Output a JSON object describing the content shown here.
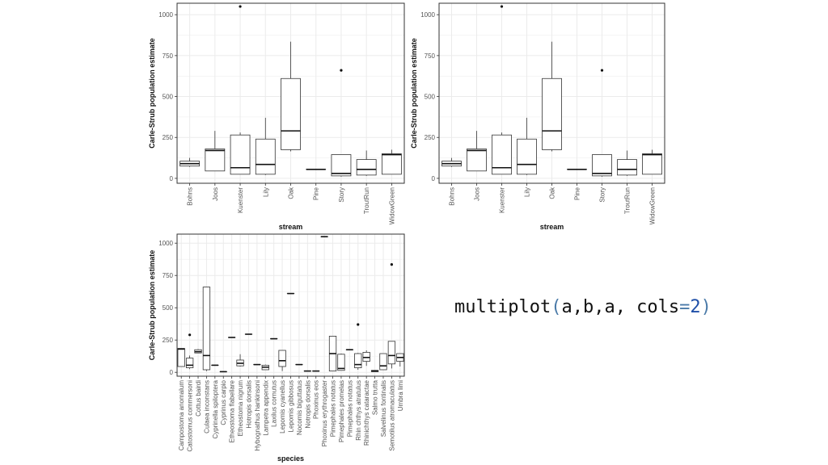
{
  "code": {
    "fn": "multiplot",
    "open": "(",
    "args": "a,b,a, cols",
    "eq": "=",
    "num": "2",
    "close": ")"
  },
  "colors": {
    "panel_border": "#333333",
    "grid": "#ebebeb",
    "box": "#333333",
    "code_paren": "#4a7aa8",
    "code_number": "#1f4fa8"
  },
  "chart_data": [
    {
      "type": "box",
      "title": "",
      "xlabel": "stream",
      "ylabel": "Carle-Strub population estimate",
      "yticks": [
        0,
        250,
        500,
        750,
        1000
      ],
      "ylim": [
        -30,
        1070
      ],
      "categories": [
        "Bohns",
        "Joos",
        "Kuenster",
        "Lily",
        "Oak",
        "Pine",
        "Story",
        "TroutRun",
        "WidowGreen"
      ],
      "boxes": [
        {
          "min": 70,
          "q1": 75,
          "median": 90,
          "q3": 105,
          "max": 125,
          "outliers": []
        },
        {
          "min": 45,
          "q1": 45,
          "median": 170,
          "q3": 180,
          "max": 290,
          "outliers": []
        },
        {
          "min": 25,
          "q1": 25,
          "median": 65,
          "q3": 265,
          "max": 280,
          "outliers": [
            1050
          ]
        },
        {
          "min": 20,
          "q1": 25,
          "median": 85,
          "q3": 240,
          "max": 370,
          "outliers": []
        },
        {
          "min": 165,
          "q1": 175,
          "median": 290,
          "q3": 610,
          "max": 835,
          "outliers": []
        },
        {
          "min": 55,
          "q1": 55,
          "median": 55,
          "q3": 55,
          "max": 55,
          "outliers": []
        },
        {
          "min": 10,
          "q1": 15,
          "median": 30,
          "q3": 145,
          "max": 145,
          "outliers": [
            660
          ]
        },
        {
          "min": 15,
          "q1": 20,
          "median": 55,
          "q3": 115,
          "max": 170,
          "outliers": []
        },
        {
          "min": 25,
          "q1": 25,
          "median": 145,
          "q3": 150,
          "max": 175,
          "outliers": []
        }
      ]
    },
    {
      "type": "box",
      "title": "",
      "xlabel": "stream",
      "ylabel": "Carle-Strub population estimate",
      "yticks": [
        0,
        250,
        500,
        750,
        1000
      ],
      "ylim": [
        -30,
        1070
      ],
      "categories": [
        "Bohns",
        "Joos",
        "Kuenster",
        "Lily",
        "Oak",
        "Pine",
        "Story",
        "TroutRun",
        "WidowGreen"
      ],
      "boxes": [
        {
          "min": 70,
          "q1": 75,
          "median": 90,
          "q3": 105,
          "max": 125,
          "outliers": []
        },
        {
          "min": 45,
          "q1": 45,
          "median": 170,
          "q3": 180,
          "max": 290,
          "outliers": []
        },
        {
          "min": 25,
          "q1": 25,
          "median": 65,
          "q3": 265,
          "max": 280,
          "outliers": [
            1050
          ]
        },
        {
          "min": 20,
          "q1": 25,
          "median": 85,
          "q3": 240,
          "max": 370,
          "outliers": []
        },
        {
          "min": 165,
          "q1": 175,
          "median": 290,
          "q3": 610,
          "max": 835,
          "outliers": []
        },
        {
          "min": 55,
          "q1": 55,
          "median": 55,
          "q3": 55,
          "max": 55,
          "outliers": []
        },
        {
          "min": 10,
          "q1": 15,
          "median": 30,
          "q3": 145,
          "max": 145,
          "outliers": [
            660
          ]
        },
        {
          "min": 15,
          "q1": 20,
          "median": 55,
          "q3": 115,
          "max": 170,
          "outliers": []
        },
        {
          "min": 25,
          "q1": 25,
          "median": 145,
          "q3": 150,
          "max": 175,
          "outliers": []
        }
      ]
    },
    {
      "type": "box",
      "title": "",
      "xlabel": "species",
      "ylabel": "Carle-Strub population estimate",
      "yticks": [
        0,
        250,
        500,
        750,
        1000
      ],
      "ylim": [
        -30,
        1070
      ],
      "categories": [
        "Campostoma anomalum",
        "Catostomus commersoni",
        "Cottus bairdi",
        "Culaea inconstans",
        "Cyprinella spiloptera",
        "Cyprinus carpio",
        "Etheostoma flabellare",
        "Etheostoma nigrum",
        "Hotropis dorsalis",
        "Hybognathus hankinsoni",
        "Lampetra appendix",
        "Laxilus cornutus",
        "Lepomis cyanellus",
        "Lepomis gibbosus",
        "Nocomis biguttatus",
        "Notropis dorsalis",
        "Phoxinus eos",
        "Phoxinus erythrogaster",
        "Pimephales notatus",
        "Pimephales promelas",
        "Pimephales notatus",
        "Rhin chthys atratulus",
        "Rhinichthys cataractae",
        "Salmo trutta",
        "Salvelinus fontinalis",
        "Semotilus atromaculatus",
        "Umbra limi"
      ],
      "boxes": [
        {
          "min": 45,
          "q1": 45,
          "median": 180,
          "q3": 185,
          "max": 185,
          "outliers": []
        },
        {
          "min": 25,
          "q1": 35,
          "median": 55,
          "q3": 110,
          "max": 130,
          "outliers": [
            290
          ]
        },
        {
          "min": 150,
          "q1": 150,
          "median": 160,
          "q3": 175,
          "max": 180,
          "outliers": []
        },
        {
          "min": 10,
          "q1": 20,
          "median": 130,
          "q3": 660,
          "max": 660,
          "outliers": []
        },
        {
          "min": 55,
          "q1": 55,
          "median": 55,
          "q3": 55,
          "max": 55,
          "outliers": []
        },
        {
          "min": 5,
          "q1": 5,
          "median": 5,
          "q3": 5,
          "max": 5,
          "outliers": []
        },
        {
          "min": 270,
          "q1": 270,
          "median": 270,
          "q3": 270,
          "max": 270,
          "outliers": []
        },
        {
          "min": 45,
          "q1": 50,
          "median": 70,
          "q3": 95,
          "max": 140,
          "outliers": []
        },
        {
          "min": 295,
          "q1": 295,
          "median": 295,
          "q3": 295,
          "max": 295,
          "outliers": []
        },
        {
          "min": 60,
          "q1": 60,
          "median": 60,
          "q3": 60,
          "max": 60,
          "outliers": []
        },
        {
          "min": 20,
          "q1": 20,
          "median": 40,
          "q3": 55,
          "max": 60,
          "outliers": []
        },
        {
          "min": 260,
          "q1": 260,
          "median": 260,
          "q3": 260,
          "max": 260,
          "outliers": []
        },
        {
          "min": 10,
          "q1": 45,
          "median": 90,
          "q3": 170,
          "max": 170,
          "outliers": []
        },
        {
          "min": 610,
          "q1": 610,
          "median": 610,
          "q3": 610,
          "max": 610,
          "outliers": []
        },
        {
          "min": 60,
          "q1": 60,
          "median": 60,
          "q3": 60,
          "max": 60,
          "outliers": []
        },
        {
          "min": 10,
          "q1": 10,
          "median": 10,
          "q3": 10,
          "max": 10,
          "outliers": []
        },
        {
          "min": 10,
          "q1": 10,
          "median": 10,
          "q3": 10,
          "max": 10,
          "outliers": []
        },
        {
          "min": 1050,
          "q1": 1050,
          "median": 1050,
          "q3": 1050,
          "max": 1050,
          "outliers": []
        },
        {
          "min": 10,
          "q1": 10,
          "median": 145,
          "q3": 280,
          "max": 280,
          "outliers": []
        },
        {
          "min": 15,
          "q1": 15,
          "median": 30,
          "q3": 140,
          "max": 145,
          "outliers": []
        },
        {
          "min": 175,
          "q1": 175,
          "median": 175,
          "q3": 175,
          "max": 175,
          "outliers": []
        },
        {
          "min": 20,
          "q1": 35,
          "median": 60,
          "q3": 145,
          "max": 150,
          "outliers": [
            370
          ]
        },
        {
          "min": 50,
          "q1": 85,
          "median": 115,
          "q3": 155,
          "max": 170,
          "outliers": []
        },
        {
          "min": 5,
          "q1": 5,
          "median": 10,
          "q3": 15,
          "max": 15,
          "outliers": []
        },
        {
          "min": 20,
          "q1": 20,
          "median": 50,
          "q3": 145,
          "max": 145,
          "outliers": []
        },
        {
          "min": 30,
          "q1": 65,
          "median": 130,
          "q3": 240,
          "max": 240,
          "outliers": [
            835
          ]
        },
        {
          "min": 45,
          "q1": 85,
          "median": 115,
          "q3": 145,
          "max": 145,
          "outliers": []
        }
      ]
    }
  ]
}
